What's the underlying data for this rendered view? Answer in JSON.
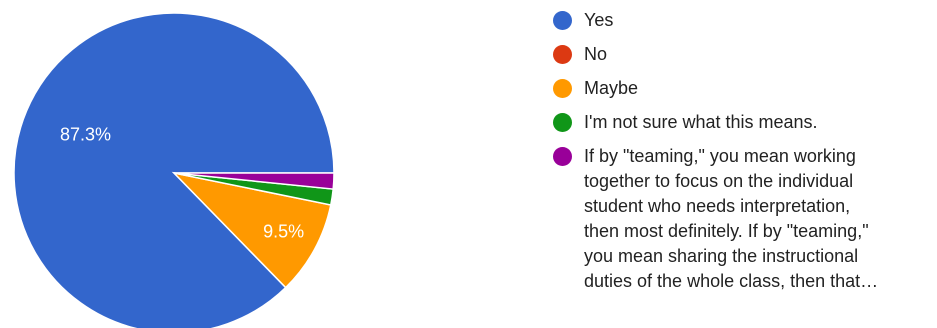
{
  "chart_data": {
    "type": "pie",
    "start_angle": 0,
    "direction": "clockwise",
    "legend_position": "right",
    "slices": [
      {
        "label": "Yes",
        "value": 87.3,
        "display": "87.3%",
        "color": "#3366cc",
        "legend_lines": [
          "Yes"
        ]
      },
      {
        "label": "No",
        "value": 0,
        "display": "",
        "color": "#dc3912",
        "legend_lines": [
          "No"
        ]
      },
      {
        "label": "Maybe",
        "value": 9.5,
        "display": "9.5%",
        "color": "#ff9900",
        "legend_lines": [
          "Maybe"
        ]
      },
      {
        "label": "I'm not sure what this means.",
        "value": 1.6,
        "display": "",
        "color": "#109618",
        "legend_lines": [
          "I'm not sure what this means."
        ]
      },
      {
        "label": "If by \"teaming,\" you mean working together to focus on the individual student who needs interpretation, then most definitely. If by \"teaming,\" you mean sharing the instructional duties of the whole class, then that…",
        "value": 1.6,
        "display": "",
        "color": "#990099",
        "legend_lines": [
          "If by \"teaming,\" you mean working",
          "together to focus on the individual",
          "student who needs interpretation,",
          "then most definitely. If by \"teaming,\"",
          "you mean sharing the instructional",
          "duties of the whole class, then that…"
        ]
      }
    ]
  }
}
